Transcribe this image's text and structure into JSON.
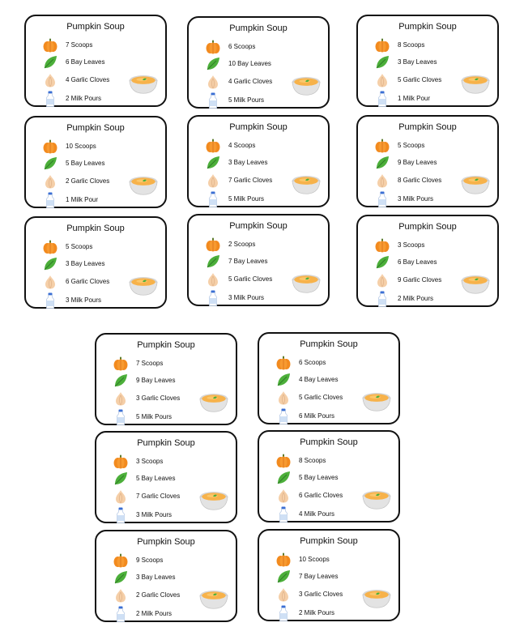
{
  "cards": [
    {
      "title": "Pumpkin Soup",
      "scoops": "7 Scoops",
      "bay": "6 Bay Leaves",
      "garlic": "4 Garlic Cloves",
      "milk": "2 Milk Pours"
    },
    {
      "title": "Pumpkin Soup",
      "scoops": "6 Scoops",
      "bay": "10 Bay Leaves",
      "garlic": "4 Garlic Cloves",
      "milk": "5 Milk Pours"
    },
    {
      "title": "Pumpkin Soup",
      "scoops": "8 Scoops",
      "bay": "3 Bay Leaves",
      "garlic": "5 Garlic Cloves",
      "milk": "1 Milk Pour"
    },
    {
      "title": "Pumpkin Soup",
      "scoops": "10 Scoops",
      "bay": "5 Bay Leaves",
      "garlic": "2 Garlic Cloves",
      "milk": "1 Milk Pour"
    },
    {
      "title": "Pumpkin Soup",
      "scoops": "4 Scoops",
      "bay": "3 Bay Leaves",
      "garlic": "7 Garlic Cloves",
      "milk": "5 Milk Pours"
    },
    {
      "title": "Pumpkin Soup",
      "scoops": "5 Scoops",
      "bay": "9 Bay Leaves",
      "garlic": "8 Garlic Cloves",
      "milk": "3 Milk Pours"
    },
    {
      "title": "Pumpkin Soup",
      "scoops": "5 Scoops",
      "bay": "3 Bay Leaves",
      "garlic": "6 Garlic Cloves",
      "milk": "3 Milk Pours"
    },
    {
      "title": "Pumpkin Soup",
      "scoops": "2 Scoops",
      "bay": "7 Bay Leaves",
      "garlic": "5 Garlic Cloves",
      "milk": "3 Milk Pours"
    },
    {
      "title": "Pumpkin Soup",
      "scoops": "3 Scoops",
      "bay": "6 Bay Leaves",
      "garlic": "9 Garlic Cloves",
      "milk": "2 Milk Pours"
    },
    {
      "title": "Pumpkin Soup",
      "scoops": "7 Scoops",
      "bay": "9 Bay Leaves",
      "garlic": "3 Garlic Cloves",
      "milk": "5 Milk Pours"
    },
    {
      "title": "Pumpkin Soup",
      "scoops": "6 Scoops",
      "bay": "4 Bay Leaves",
      "garlic": "5 Garlic Cloves",
      "milk": "6 Milk Pours"
    },
    {
      "title": "Pumpkin Soup",
      "scoops": "3 Scoops",
      "bay": "5 Bay Leaves",
      "garlic": "7 Garlic Cloves",
      "milk": "3 Milk Pours"
    },
    {
      "title": "Pumpkin Soup",
      "scoops": "8 Scoops",
      "bay": "5 Bay Leaves",
      "garlic": "6 Garlic Cloves",
      "milk": "4 Milk Pours"
    },
    {
      "title": "Pumpkin Soup",
      "scoops": "9 Scoops",
      "bay": "3 Bay Leaves",
      "garlic": "2 Garlic Cloves",
      "milk": "2 Milk Pours"
    },
    {
      "title": "Pumpkin Soup",
      "scoops": "10 Scoops",
      "bay": "7 Bay Leaves",
      "garlic": "3 Garlic Cloves",
      "milk": "2 Milk Pours"
    }
  ],
  "icons": {
    "scoops": "pumpkin-icon",
    "bay": "bay-leaf-icon",
    "garlic": "garlic-icon",
    "milk": "milk-bottle-icon",
    "bowl": "soup-bowl-icon"
  },
  "colors": {
    "pumpkin": "#f28a1e",
    "leaf": "#4caf3a",
    "garlic": "#f5cfa8",
    "milk": "#cfe0f5",
    "soup": "#f7b24a",
    "border": "#111111"
  }
}
